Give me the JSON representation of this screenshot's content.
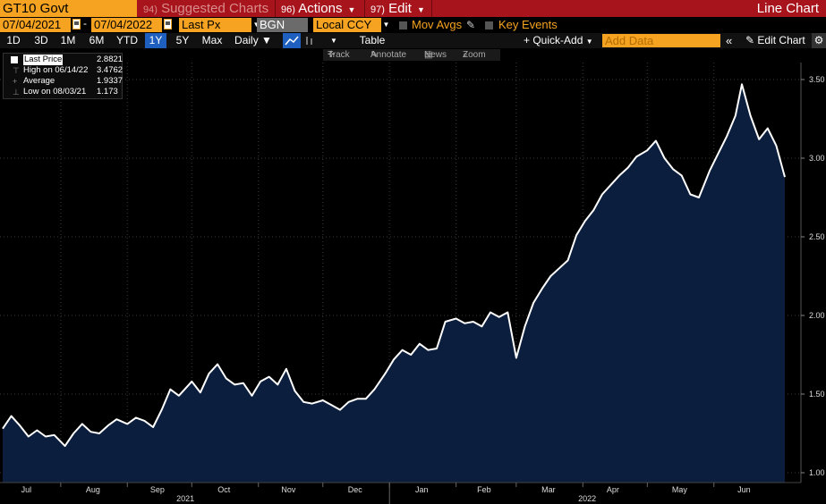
{
  "toolbar": {
    "ticker": "GT10 Govt",
    "suggested_num": "94)",
    "suggested_label": "Suggested Charts",
    "actions_num": "96)",
    "actions_label": "Actions",
    "edit_num": "97)",
    "edit_label": "Edit",
    "title": "Line Chart",
    "start_date": "07/04/2021",
    "end_date": "07/04/2022",
    "field": "Last Px",
    "source": "BGN",
    "currency": "Local CCY",
    "mov_avgs": "Mov Avgs",
    "key_events": "Key Events"
  },
  "ranges": [
    {
      "label": "1D",
      "active": false
    },
    {
      "label": "3D",
      "active": false
    },
    {
      "label": "1M",
      "active": false
    },
    {
      "label": "6M",
      "active": false
    },
    {
      "label": "YTD",
      "active": false
    },
    {
      "label": "1Y",
      "active": true
    },
    {
      "label": "5Y",
      "active": false
    },
    {
      "label": "Max",
      "active": false
    }
  ],
  "periodicity": "Daily ▼",
  "table_label": "Table",
  "quick_add": "+ Quick-Add",
  "add_data_placeholder": "Add Data",
  "edit_chart": "Edit Chart",
  "subtools": {
    "track": "Track",
    "annotate": "Annotate",
    "news": "News",
    "zoom": "Zoom"
  },
  "legend": {
    "last_label": "Last Price",
    "last_value": "2.8821",
    "high_label": "High on 06/14/22",
    "high_value": "3.4762",
    "avg_label": "Average",
    "avg_value": "1.9337",
    "low_label": "Low on 08/03/21",
    "low_value": "1.173"
  },
  "colors": {
    "line": "#ffffff",
    "fill": "#0b1e3d",
    "accent": "#f5a320",
    "brand_bar": "#a8141b"
  },
  "chart_data": {
    "type": "area",
    "ylim": [
      0.95,
      3.55
    ],
    "y_ticks": [
      "1.00",
      "1.50",
      "2.00",
      "2.50",
      "3.00",
      "3.50"
    ],
    "month_labels": [
      "Jul",
      "Aug",
      "Sep",
      "Oct",
      "Nov",
      "Dec",
      "Jan",
      "Feb",
      "Mar",
      "Apr",
      "May",
      "Jun"
    ],
    "year_labels": [
      "2021",
      "2022"
    ],
    "x": [
      "2021-07-05",
      "2021-07-09",
      "2021-07-13",
      "2021-07-17",
      "2021-07-21",
      "2021-07-25",
      "2021-07-29",
      "2021-08-03",
      "2021-08-07",
      "2021-08-11",
      "2021-08-15",
      "2021-08-19",
      "2021-08-23",
      "2021-08-27",
      "2021-09-01",
      "2021-09-05",
      "2021-09-09",
      "2021-09-13",
      "2021-09-17",
      "2021-09-21",
      "2021-09-25",
      "2021-10-01",
      "2021-10-05",
      "2021-10-09",
      "2021-10-13",
      "2021-10-17",
      "2021-10-21",
      "2021-10-25",
      "2021-10-29",
      "2021-11-02",
      "2021-11-06",
      "2021-11-10",
      "2021-11-14",
      "2021-11-18",
      "2021-11-22",
      "2021-11-26",
      "2021-12-01",
      "2021-12-05",
      "2021-12-09",
      "2021-12-13",
      "2021-12-17",
      "2021-12-21",
      "2021-12-25",
      "2021-12-30",
      "2022-01-03",
      "2022-01-07",
      "2022-01-11",
      "2022-01-15",
      "2022-01-19",
      "2022-01-23",
      "2022-01-27",
      "2022-02-01",
      "2022-02-05",
      "2022-02-09",
      "2022-02-13",
      "2022-02-17",
      "2022-02-21",
      "2022-02-25",
      "2022-03-01",
      "2022-03-05",
      "2022-03-09",
      "2022-03-13",
      "2022-03-17",
      "2022-03-21",
      "2022-03-25",
      "2022-03-29",
      "2022-04-02",
      "2022-04-06",
      "2022-04-10",
      "2022-04-14",
      "2022-04-18",
      "2022-04-22",
      "2022-04-26",
      "2022-05-01",
      "2022-05-05",
      "2022-05-09",
      "2022-05-13",
      "2022-05-17",
      "2022-05-21",
      "2022-05-25",
      "2022-05-30",
      "2022-06-03",
      "2022-06-07",
      "2022-06-11",
      "2022-06-14",
      "2022-06-18",
      "2022-06-22",
      "2022-06-26",
      "2022-06-30",
      "2022-07-04"
    ],
    "y": [
      1.28,
      1.36,
      1.3,
      1.23,
      1.27,
      1.23,
      1.24,
      1.17,
      1.25,
      1.31,
      1.26,
      1.25,
      1.3,
      1.34,
      1.31,
      1.35,
      1.33,
      1.29,
      1.4,
      1.53,
      1.49,
      1.58,
      1.51,
      1.63,
      1.69,
      1.6,
      1.56,
      1.57,
      1.49,
      1.58,
      1.61,
      1.56,
      1.66,
      1.52,
      1.45,
      1.44,
      1.46,
      1.43,
      1.4,
      1.45,
      1.47,
      1.47,
      1.53,
      1.63,
      1.72,
      1.78,
      1.75,
      1.82,
      1.78,
      1.79,
      1.96,
      1.98,
      1.95,
      1.96,
      1.93,
      2.02,
      1.99,
      2.02,
      1.73,
      1.93,
      2.08,
      2.17,
      2.25,
      2.3,
      2.35,
      2.51,
      2.6,
      2.67,
      2.77,
      2.83,
      2.89,
      2.94,
      3.01,
      3.05,
      3.11,
      3.0,
      2.93,
      2.89,
      2.77,
      2.75,
      2.92,
      3.03,
      3.14,
      3.27,
      3.47,
      3.27,
      3.12,
      3.19,
      3.08,
      2.88
    ]
  }
}
